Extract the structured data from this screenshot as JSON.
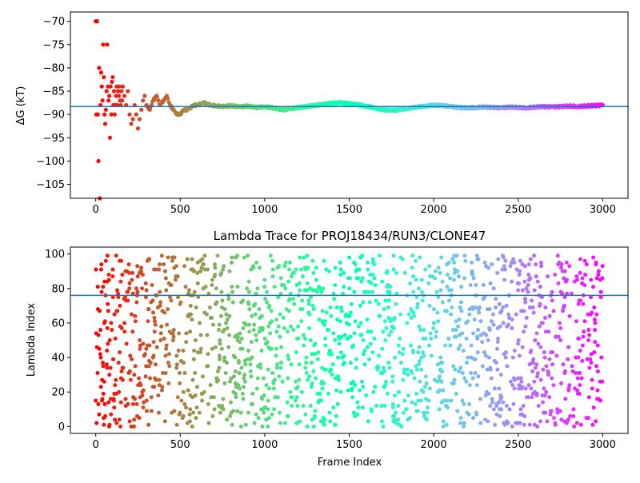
{
  "chart_data": [
    {
      "type": "scatter",
      "title": "",
      "xlabel": "",
      "ylabel": "ΔG (kT)",
      "xlim": [
        -150,
        3150
      ],
      "ylim": [
        -108,
        -68
      ],
      "xticks": [
        0,
        500,
        1000,
        1500,
        2000,
        2500,
        3000
      ],
      "yticks": [
        -105,
        -100,
        -95,
        -90,
        -85,
        -80,
        -75,
        -70
      ],
      "hline": -88.3,
      "colormap": "rainbow",
      "series": [
        {
          "x": [
            0,
            4,
            8,
            12,
            16,
            20,
            24,
            28,
            32,
            36,
            40,
            44,
            48,
            52,
            56,
            60,
            64,
            68,
            72,
            76,
            80,
            84,
            88,
            92,
            96,
            100,
            104,
            108,
            112,
            116,
            120,
            124,
            128,
            132,
            136,
            140,
            144,
            148,
            152,
            156,
            160,
            170,
            180,
            190,
            200,
            210,
            220,
            230,
            240,
            250,
            260,
            270,
            280,
            290,
            300,
            320,
            340,
            360,
            380,
            400,
            420,
            440,
            460,
            480,
            500,
            520,
            540,
            560,
            580,
            600,
            640,
            680,
            720,
            760,
            800,
            850,
            900,
            950,
            1000,
            1050,
            1100,
            1150,
            1200,
            1250,
            1300,
            1350,
            1400,
            1450,
            1500,
            1550,
            1600,
            1650,
            1700,
            1750,
            1800,
            1850,
            1900,
            1950,
            2000,
            2050,
            2100,
            2150,
            2200,
            2250,
            2300,
            2350,
            2400,
            2450,
            2500,
            2550,
            2600,
            2650,
            2700,
            2750,
            2800,
            2850,
            2900,
            2950,
            3000
          ],
          "values": [
            -70,
            -90,
            -70,
            -90,
            -100,
            -80,
            -108,
            -88,
            -81,
            -84,
            -87,
            -75,
            -82,
            -90,
            -92,
            -89,
            -85,
            -75,
            -84,
            -87,
            -86,
            -95,
            -84,
            -90,
            -83,
            -82,
            -88,
            -85,
            -90,
            -88,
            -86,
            -84,
            -88,
            -85,
            -86,
            -84,
            -87,
            -88,
            -85,
            -87,
            -84,
            -86,
            -88,
            -85,
            -90,
            -92,
            -91,
            -88,
            -90,
            -93,
            -91,
            -89,
            -87,
            -86,
            -88,
            -89,
            -87,
            -86,
            -88,
            -87,
            -86,
            -88,
            -89,
            -90,
            -90,
            -89,
            -89,
            -88.5,
            -88,
            -88,
            -87.5,
            -88,
            -88.2,
            -88.3,
            -88.1,
            -88.4,
            -88.2,
            -88.5,
            -88.3,
            -88.6,
            -89,
            -88.8,
            -88.5,
            -88.3,
            -88,
            -87.8,
            -87.6,
            -87.5,
            -87.7,
            -87.9,
            -88.2,
            -88.6,
            -89,
            -89.1,
            -89,
            -88.7,
            -88.4,
            -88.2,
            -88,
            -88.1,
            -88.3,
            -88.5,
            -88.6,
            -88.5,
            -88.4,
            -88.5,
            -88.6,
            -88.4,
            -88.5,
            -88.6,
            -88.4,
            -88.3,
            -88.4,
            -88.3,
            -88.2,
            -88.3,
            -88.2,
            -88.1,
            -88
          ]
        }
      ]
    },
    {
      "type": "scatter",
      "title": "Lambda Trace for PROJ18434/RUN3/CLONE47",
      "xlabel": "Frame Index",
      "ylabel": "Lambda Index",
      "xlim": [
        -150,
        3150
      ],
      "ylim": [
        -4,
        104
      ],
      "xticks": [
        0,
        500,
        1000,
        1500,
        2000,
        2500,
        3000
      ],
      "yticks": [
        0,
        20,
        40,
        60,
        80,
        100
      ],
      "hline": 76,
      "colormap": "rainbow",
      "n_points": 3000,
      "x_range": [
        0,
        3000
      ],
      "y_range": [
        0,
        99
      ]
    }
  ]
}
